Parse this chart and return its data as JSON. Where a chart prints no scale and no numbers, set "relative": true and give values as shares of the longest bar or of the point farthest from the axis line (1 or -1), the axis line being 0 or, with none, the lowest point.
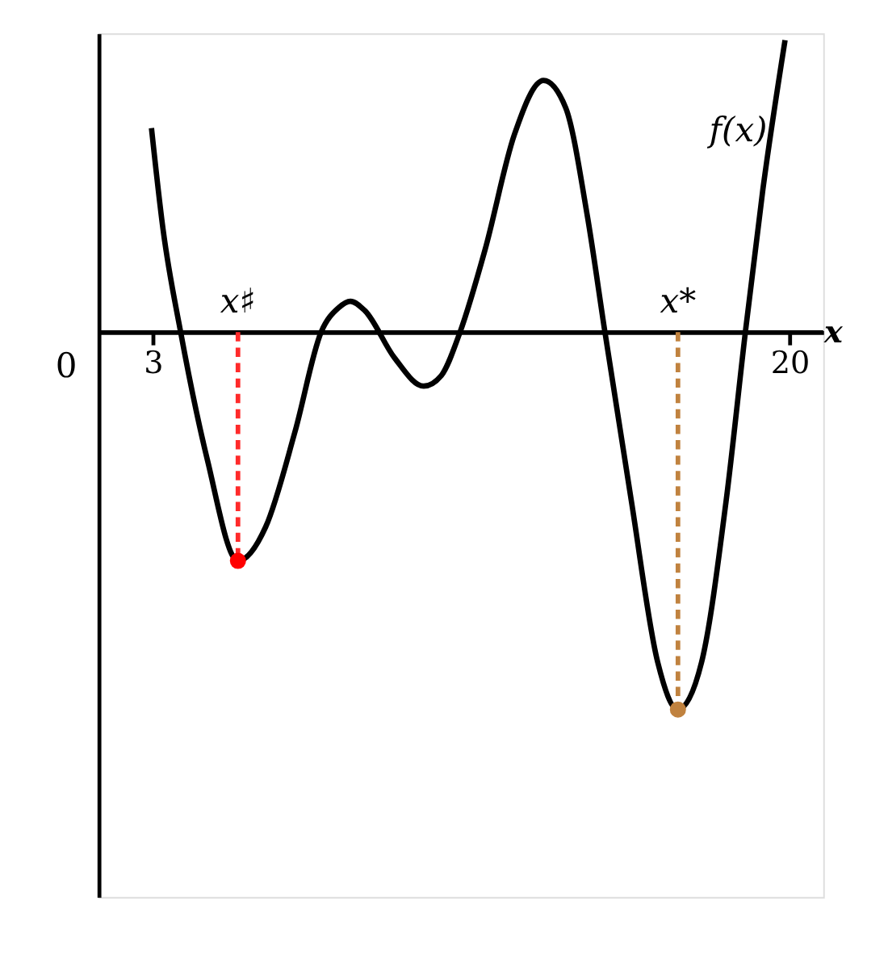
{
  "chart_data": {
    "type": "line",
    "relative": true,
    "xlabel": "x",
    "xlim": [
      1.55,
      20.9
    ],
    "xticks": [
      3,
      20
    ],
    "series": [
      {
        "color": "#000000",
        "x": [
          2.96,
          3.27,
          3.74,
          4.45,
          5.27,
          6.01,
          6.79,
          7.49,
          7.96,
          8.27,
          8.66,
          9.45,
          10.23,
          10.7,
          11.2,
          11.87,
          12.65,
          13.43,
          14.02,
          14.6,
          15.07,
          15.77,
          16.48,
          17.02,
          17.65,
          18.31,
          18.82,
          19.29,
          19.88
        ],
        "values": [
          0.541,
          0.272,
          0,
          -0.337,
          -0.606,
          -0.516,
          -0.265,
          0,
          0.065,
          0.082,
          0.057,
          -0.068,
          -0.143,
          -0.115,
          0,
          0.219,
          0.523,
          0.667,
          0.595,
          0.308,
          0,
          -0.444,
          -0.875,
          -1,
          -0.875,
          -0.444,
          0,
          0.38,
          0.774
        ]
      },
      {
        "type": "line",
        "line_style": "dashed",
        "color": "#ff2a2a",
        "x": [
          5.27,
          5.27
        ],
        "values": [
          0,
          -0.606
        ]
      },
      {
        "type": "line",
        "line_style": "dashed",
        "color": "#c0823f",
        "x": [
          17.02,
          17.02
        ],
        "values": [
          0,
          -1
        ]
      },
      {
        "type": "scatter",
        "marker": "circle",
        "color": "#ff0000",
        "x": [
          5.27
        ],
        "values": [
          -0.606
        ]
      },
      {
        "type": "scatter",
        "marker": "circle",
        "color": "#c0823f",
        "x": [
          17.02
        ],
        "values": [
          -1
        ]
      }
    ],
    "annotations": [
      "f(x)",
      {
        "text": "x♯",
        "x": 5.27,
        "y": 0
      },
      {
        "text": "x*",
        "x": 17.02,
        "y": 0
      },
      "0"
    ]
  }
}
